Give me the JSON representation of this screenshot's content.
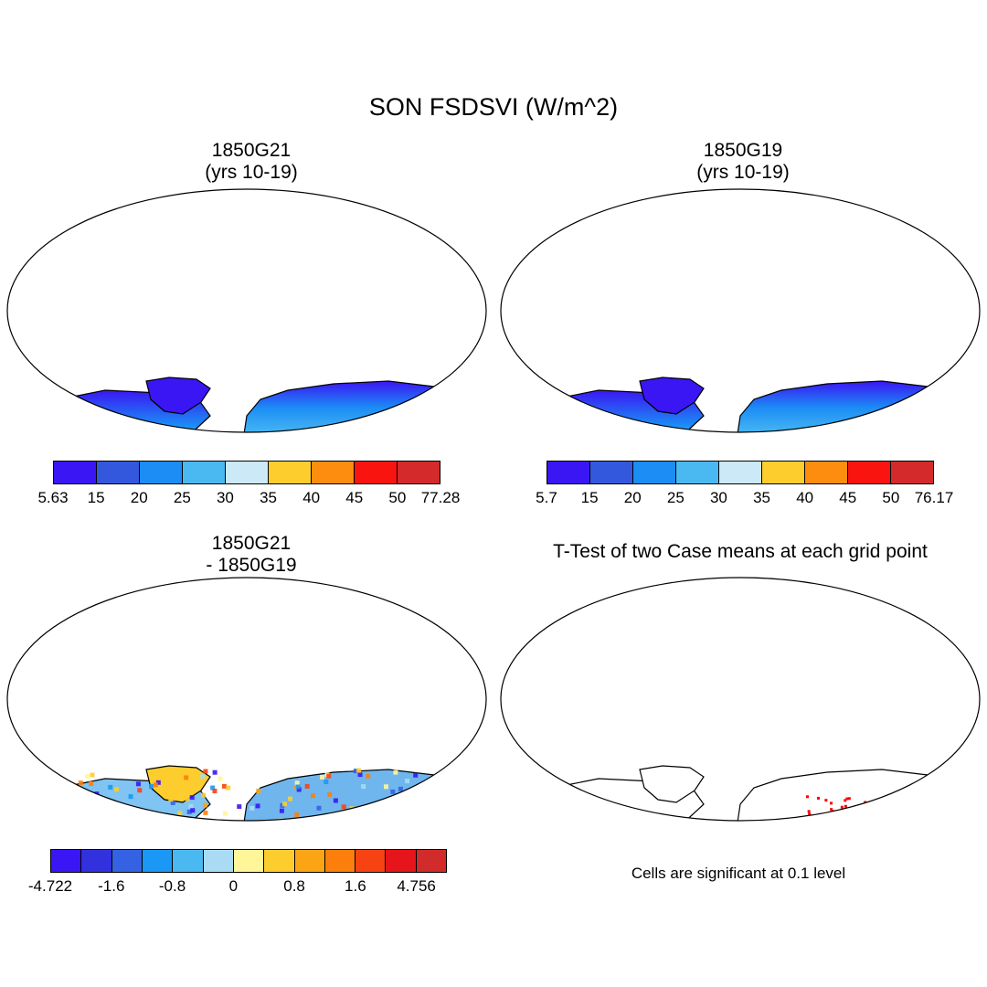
{
  "title": "SON FSDSVI (W/m^2)",
  "panels": [
    {
      "title_line1": "1850G21",
      "title_line2": "(yrs 10-19)",
      "kind": "field",
      "colorbar": {
        "labels": [
          "5.63",
          "15",
          "20",
          "25",
          "30",
          "35",
          "40",
          "45",
          "50",
          "77.28"
        ],
        "colors": [
          "#3b16f4",
          "#3458dd",
          "#1b8df5",
          "#4ab9f2",
          "#cbe9f6",
          "#fdcd2e",
          "#fc8d0f",
          "#fa1410",
          "#d42a2b"
        ]
      }
    },
    {
      "title_line1": "1850G19",
      "title_line2": "(yrs 10-19)",
      "kind": "field",
      "colorbar": {
        "labels": [
          "5.7",
          "15",
          "20",
          "25",
          "30",
          "35",
          "40",
          "45",
          "50",
          "76.17"
        ],
        "colors": [
          "#3b16f4",
          "#3458dd",
          "#1b8df5",
          "#4ab9f2",
          "#cbe9f6",
          "#fdcd2e",
          "#fc8d0f",
          "#fa1410",
          "#d42a2b"
        ]
      }
    },
    {
      "title_line1": "1850G21",
      "title_line2": "- 1850G19",
      "kind": "difference",
      "colorbar": {
        "labels": [
          "-4.722",
          "-1.6",
          "-0.8",
          "0",
          "0.8",
          "1.6",
          "4.756"
        ],
        "label_positions": [
          0,
          2,
          4,
          6,
          8,
          10,
          12
        ],
        "colors": [
          "#3b16f4",
          "#3131de",
          "#3462e2",
          "#1b98f5",
          "#4ab9f2",
          "#a9dcf4",
          "#fff69a",
          "#fdcd2e",
          "#fca514",
          "#fc7f0c",
          "#f74312",
          "#e6141b",
          "#d12b2b"
        ]
      }
    },
    {
      "title_line1": "T-Test of two Case means at each grid point",
      "title_line2": "",
      "kind": "significance",
      "note": "Cells are significant at 0.1 level"
    }
  ]
}
